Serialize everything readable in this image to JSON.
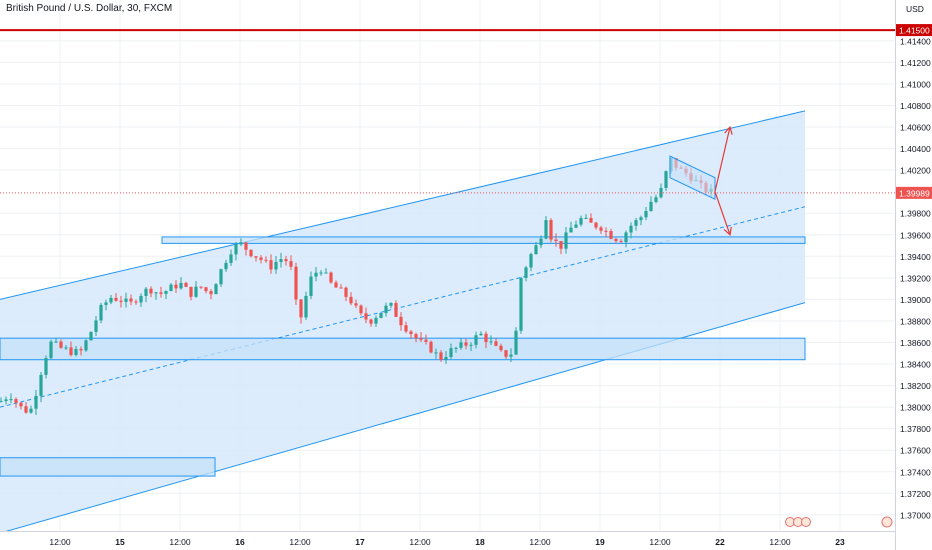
{
  "header": {
    "title": "British Pound / U.S. Dollar, 30, FXCM"
  },
  "currency_label": "USD",
  "colors": {
    "up": "#26a69a",
    "down": "#ef5350",
    "channel_fill": "#d6e9fb",
    "channel_line": "#2196f3",
    "zone_fill": "#c7e1fa",
    "resistance": "#cc0000",
    "current_price": "#ef5350",
    "arrow": "#e53935",
    "grid": "#eef0f3",
    "axis_text": "#131722"
  },
  "badges": {
    "resistance_price": "1.41500",
    "current_price": "1.39989"
  },
  "chart_data": {
    "type": "candlestick",
    "title": "British Pound / U.S. Dollar, 30, FXCM",
    "symbol": "GBPUSD",
    "timeframe": "30",
    "ylabel": "USD",
    "ylim": [
      1.3685,
      1.4177
    ],
    "yticks": [
      "1.41400",
      "1.41200",
      "1.41000",
      "1.40800",
      "1.40600",
      "1.40400",
      "1.40200",
      "1.39800",
      "1.39600",
      "1.39400",
      "1.39200",
      "1.39000",
      "1.38800",
      "1.38600",
      "1.38400",
      "1.38200",
      "1.38000",
      "1.37800",
      "1.37600",
      "1.37400",
      "1.37200",
      "1.37000"
    ],
    "ytick_values": [
      1.414,
      1.412,
      1.41,
      1.408,
      1.406,
      1.404,
      1.402,
      1.398,
      1.396,
      1.394,
      1.392,
      1.39,
      1.388,
      1.386,
      1.384,
      1.382,
      1.38,
      1.378,
      1.376,
      1.374,
      1.372,
      1.37
    ],
    "xticks": [
      {
        "label": "12:00",
        "x": 6
      },
      {
        "label": "15",
        "x": 12
      },
      {
        "label": "12:00",
        "x": 18
      },
      {
        "label": "16",
        "x": 24
      },
      {
        "label": "12:00",
        "x": 30
      },
      {
        "label": "17",
        "x": 36
      },
      {
        "label": "12:00",
        "x": 42
      },
      {
        "label": "18",
        "x": 48
      },
      {
        "label": "12:00",
        "x": 54
      },
      {
        "label": "19",
        "x": 60
      },
      {
        "label": "12:00",
        "x": 66
      },
      {
        "label": "22",
        "x": 72
      },
      {
        "label": "12:00",
        "x": 78
      },
      {
        "label": "23",
        "x": 84
      }
    ],
    "xlim": [
      0,
      89.5
    ],
    "path": [
      [
        0,
        1.3805
      ],
      [
        1,
        1.3812
      ],
      [
        2,
        1.38
      ],
      [
        3,
        1.3795
      ],
      [
        3.5,
        1.381
      ],
      [
        4,
        1.383
      ],
      [
        5,
        1.386
      ],
      [
        6,
        1.3855
      ],
      [
        7,
        1.3852
      ],
      [
        8,
        1.385
      ],
      [
        9,
        1.3868
      ],
      [
        10,
        1.389
      ],
      [
        11,
        1.3902
      ],
      [
        12,
        1.39
      ],
      [
        13,
        1.3895
      ],
      [
        14,
        1.3905
      ],
      [
        15,
        1.391
      ],
      [
        16,
        1.3905
      ],
      [
        17,
        1.391
      ],
      [
        18,
        1.3915
      ],
      [
        19,
        1.3905
      ],
      [
        20,
        1.3912
      ],
      [
        21,
        1.3905
      ],
      [
        22,
        1.3925
      ],
      [
        23,
        1.3945
      ],
      [
        24,
        1.3952
      ],
      [
        25,
        1.3944
      ],
      [
        26,
        1.3938
      ],
      [
        27,
        1.393
      ],
      [
        28,
        1.3938
      ],
      [
        29,
        1.3935
      ],
      [
        29.5,
        1.39
      ],
      [
        30,
        1.388
      ],
      [
        31,
        1.3918
      ],
      [
        32,
        1.393
      ],
      [
        33,
        1.3915
      ],
      [
        34,
        1.3908
      ],
      [
        35,
        1.39
      ],
      [
        36,
        1.3885
      ],
      [
        37,
        1.388
      ],
      [
        38,
        1.3888
      ],
      [
        39,
        1.3895
      ],
      [
        40,
        1.388
      ],
      [
        41,
        1.387
      ],
      [
        42,
        1.386
      ],
      [
        43,
        1.3855
      ],
      [
        44,
        1.3845
      ],
      [
        45,
        1.3852
      ],
      [
        46,
        1.3856
      ],
      [
        47,
        1.386
      ],
      [
        48,
        1.3868
      ],
      [
        49,
        1.386
      ],
      [
        50,
        1.385
      ],
      [
        51,
        1.3848
      ],
      [
        51.5,
        1.3858
      ],
      [
        52,
        1.3918
      ],
      [
        53,
        1.394
      ],
      [
        54,
        1.3955
      ],
      [
        54.5,
        1.3982
      ],
      [
        55,
        1.396
      ],
      [
        56,
        1.3948
      ],
      [
        57,
        1.3965
      ],
      [
        58,
        1.3975
      ],
      [
        59,
        1.397
      ],
      [
        60,
        1.3968
      ],
      [
        61,
        1.396
      ],
      [
        62,
        1.3955
      ],
      [
        63,
        1.3968
      ],
      [
        64,
        1.3975
      ],
      [
        65,
        1.399
      ],
      [
        66,
        1.3998
      ],
      [
        67,
        1.403
      ],
      [
        68,
        1.402
      ],
      [
        69,
        1.4015
      ],
      [
        70,
        1.4005
      ],
      [
        71,
        1.4
      ],
      [
        71.5,
        1.3998
      ]
    ],
    "overlays": {
      "resistance_line": 1.415,
      "current_price_line": 1.39989,
      "channel": {
        "upper": [
          [
            0,
            1.39
          ],
          [
            80.5,
            1.4075
          ]
        ],
        "lower": [
          [
            0,
            1.3683
          ],
          [
            80.5,
            1.3897
          ]
        ],
        "mid": [
          [
            0,
            1.38
          ],
          [
            80.5,
            1.3986
          ]
        ]
      },
      "zones": [
        {
          "x0": 16.2,
          "x1": 80.5,
          "y0": 1.3952,
          "y1": 1.3958
        },
        {
          "x0": 0,
          "x1": 80.5,
          "y0": 1.3844,
          "y1": 1.3864
        },
        {
          "x0": 0,
          "x1": 21.5,
          "y0": 1.3736,
          "y1": 1.3753
        }
      ],
      "flag": [
        [
          67,
          1.4033
        ],
        [
          71.5,
          1.4013
        ],
        [
          71.5,
          1.3993
        ],
        [
          67,
          1.4013
        ]
      ],
      "arrows": {
        "start": [
          71.5,
          1.4
        ],
        "up_target": [
          73,
          1.406
        ],
        "down_target": [
          73,
          1.396
        ]
      }
    }
  }
}
